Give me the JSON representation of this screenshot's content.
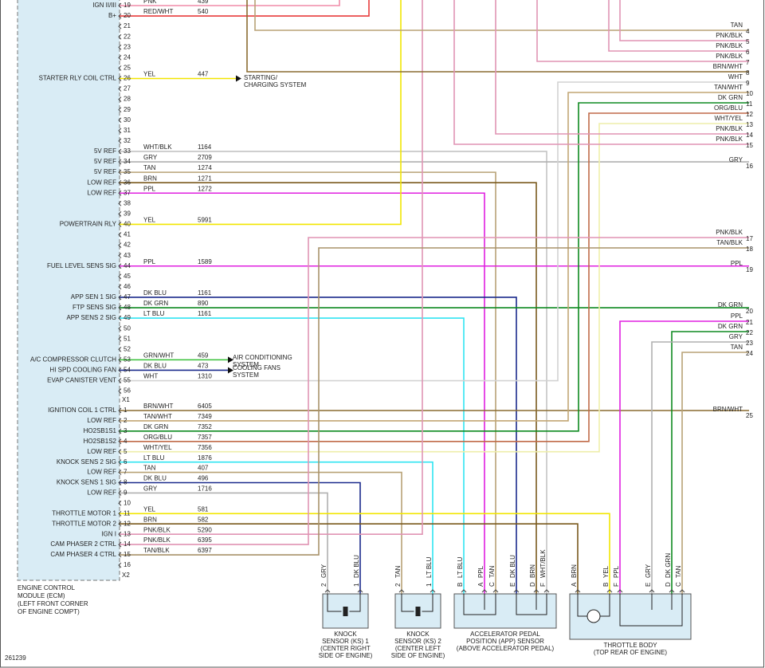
{
  "ecm": {
    "name_lines": [
      "ENGINE CONTROL",
      "MODULE (ECM)",
      "(LEFT FRONT CORNER",
      "OF ENGINE COMPT)"
    ],
    "connectors": [
      {
        "name": "X1",
        "pins": [
          {
            "pin": "19",
            "label": "IGN II/III",
            "color": "PNK",
            "circuit": "439"
          },
          {
            "pin": "20",
            "label": "B+",
            "color": "RED/WHT",
            "circuit": "540"
          },
          {
            "pin": "21"
          },
          {
            "pin": "22"
          },
          {
            "pin": "23"
          },
          {
            "pin": "24"
          },
          {
            "pin": "25"
          },
          {
            "pin": "26",
            "label": "STARTER RLY COIL CTRL",
            "color": "YEL",
            "circuit": "447"
          },
          {
            "pin": "27"
          },
          {
            "pin": "28"
          },
          {
            "pin": "29"
          },
          {
            "pin": "30"
          },
          {
            "pin": "31"
          },
          {
            "pin": "32"
          },
          {
            "pin": "33",
            "label": "5V REF",
            "color": "WHT/BLK",
            "circuit": "1164"
          },
          {
            "pin": "34",
            "label": "5V REF",
            "color": "GRY",
            "circuit": "2709"
          },
          {
            "pin": "35",
            "label": "5V REF",
            "color": "TAN",
            "circuit": "1274"
          },
          {
            "pin": "36",
            "label": "LOW REF",
            "color": "BRN",
            "circuit": "1271"
          },
          {
            "pin": "37",
            "label": "LOW REF",
            "color": "PPL",
            "circuit": "1272"
          },
          {
            "pin": "38"
          },
          {
            "pin": "39"
          },
          {
            "pin": "40",
            "label": "POWERTRAIN RLY",
            "color": "YEL",
            "circuit": "5991"
          },
          {
            "pin": "41"
          },
          {
            "pin": "42"
          },
          {
            "pin": "43"
          },
          {
            "pin": "44",
            "label": "FUEL LEVEL SENS SIG",
            "color": "PPL",
            "circuit": "1589"
          },
          {
            "pin": "45"
          },
          {
            "pin": "46"
          },
          {
            "pin": "47",
            "label": "APP SEN 1 SIG",
            "color": "DK BLU",
            "circuit": "1161"
          },
          {
            "pin": "48",
            "label": "FTP SENS SIG",
            "color": "DK GRN",
            "circuit": "890"
          },
          {
            "pin": "49",
            "label": "APP SENS 2 SIG",
            "color": "LT BLU",
            "circuit": "1161"
          },
          {
            "pin": "50"
          },
          {
            "pin": "51"
          },
          {
            "pin": "52"
          },
          {
            "pin": "53",
            "label": "A/C COMPRESSOR CLUTCH",
            "color": "GRN/WHT",
            "circuit": "459"
          },
          {
            "pin": "54",
            "label": "HI SPD COOLING FAN",
            "color": "DK BLU",
            "circuit": "473"
          },
          {
            "pin": "55",
            "label": "EVAP CANISTER VENT",
            "color": "WHT",
            "circuit": "1310"
          },
          {
            "pin": "56"
          }
        ]
      },
      {
        "name": "X2",
        "pins": [
          {
            "pin": "1",
            "label": "IGNITION COIL 1 CTRL",
            "color": "BRN/WHT",
            "circuit": "6405"
          },
          {
            "pin": "2",
            "label": "LOW REF",
            "color": "TAN/WHT",
            "circuit": "7349"
          },
          {
            "pin": "3",
            "label": "HO2SB1S1",
            "color": "DK GRN",
            "circuit": "7352"
          },
          {
            "pin": "4",
            "label": "HO2SB1S2",
            "color": "ORG/BLU",
            "circuit": "7357"
          },
          {
            "pin": "5",
            "label": "LOW REF",
            "color": "WHT/YEL",
            "circuit": "7356"
          },
          {
            "pin": "6",
            "label": "KNOCK SENS 2 SIG",
            "color": "LT BLU",
            "circuit": "1876"
          },
          {
            "pin": "7",
            "label": "LOW REF",
            "color": "TAN",
            "circuit": "407"
          },
          {
            "pin": "8",
            "label": "KNOCK SENS 1 SIG",
            "color": "DK BLU",
            "circuit": "496"
          },
          {
            "pin": "9",
            "label": "LOW REF",
            "color": "GRY",
            "circuit": "1716"
          },
          {
            "pin": "10"
          },
          {
            "pin": "11",
            "label": "THROTTLE MOTOR 1",
            "color": "YEL",
            "circuit": "581"
          },
          {
            "pin": "12",
            "label": "THROTTLE MOTOR 2",
            "color": "BRN",
            "circuit": "582"
          },
          {
            "pin": "13",
            "label": "IGN I",
            "color": "PNK/BLK",
            "circuit": "5290"
          },
          {
            "pin": "14",
            "label": "CAM PHASER 2 CTRL",
            "color": "PNK/BLK",
            "circuit": "6395"
          },
          {
            "pin": "15",
            "label": "CAM PHASER 4 CTRL",
            "color": "TAN/BLK",
            "circuit": "6397"
          },
          {
            "pin": "16"
          }
        ]
      }
    ]
  },
  "destinations": [
    {
      "lines": [
        "STARTING/",
        "CHARGING SYSTEM"
      ]
    },
    {
      "lines": [
        "AIR CONDITIONING",
        "SYSTEM"
      ]
    },
    {
      "lines": [
        "COOLING FANS",
        "SYSTEM"
      ]
    }
  ],
  "right_connector": [
    {
      "pin": "4",
      "color": "TAN"
    },
    {
      "pin": "5",
      "color": "PNK/BLK"
    },
    {
      "pin": "6",
      "color": "PNK/BLK"
    },
    {
      "pin": "7",
      "color": "PNK/BLK"
    },
    {
      "pin": "8",
      "color": "BRN/WHT"
    },
    {
      "pin": "9",
      "color": "WHT"
    },
    {
      "pin": "10",
      "color": "TAN/WHT"
    },
    {
      "pin": "11",
      "color": "DK GRN"
    },
    {
      "pin": "12",
      "color": "ORG/BLU"
    },
    {
      "pin": "13",
      "color": "WHT/YEL"
    },
    {
      "pin": "14",
      "color": "PNK/BLK"
    },
    {
      "pin": "15",
      "color": "PNK/BLK"
    },
    {
      "pin": "16",
      "color": "GRY"
    },
    {
      "pin": "17",
      "color": "PNK/BLK"
    },
    {
      "pin": "18",
      "color": "TAN/BLK"
    },
    {
      "pin": "19",
      "color": "PPL"
    },
    {
      "pin": "20",
      "color": "DK GRN"
    },
    {
      "pin": "21",
      "color": "PPL"
    },
    {
      "pin": "22",
      "color": "DK GRN"
    },
    {
      "pin": "23",
      "color": "GRY"
    },
    {
      "pin": "24",
      "color": "TAN"
    },
    {
      "pin": "25",
      "color": "BRN/WHT"
    }
  ],
  "sensors": [
    {
      "name_lines": [
        "KNOCK",
        "SENSOR (KS) 1",
        "(CENTER RIGHT",
        "SIDE OF ENGINE)"
      ],
      "pins": [
        {
          "pin": "2",
          "color": "GRY"
        },
        {
          "pin": "1",
          "color": "DK BLU"
        }
      ]
    },
    {
      "name_lines": [
        "KNOCK",
        "SENSOR (KS) 2",
        "(CENTER LEFT",
        "SIDE OF ENGINE)"
      ],
      "pins": [
        {
          "pin": "2",
          "color": "TAN"
        },
        {
          "pin": "1",
          "color": "LT BLU"
        }
      ]
    },
    {
      "name_lines": [
        "ACCELERATOR PEDAL",
        "POSITION (APP) SENSOR",
        "(ABOVE ACCELERATOR PEDAL)"
      ],
      "pins": [
        {
          "pin": "B",
          "color": "LT BLU"
        },
        {
          "pin": "A",
          "color": "PPL"
        },
        {
          "pin": "C",
          "color": "TAN"
        },
        {
          "pin": "E",
          "color": "DK BLU"
        },
        {
          "pin": "D",
          "color": "BRN"
        },
        {
          "pin": "F",
          "color": "WHT/BLK"
        }
      ]
    },
    {
      "name_lines": [
        "THROTTLE BODY",
        "(TOP REAR OF ENGINE)"
      ],
      "pins": [
        {
          "pin": "A",
          "color": "BRN"
        },
        {
          "pin": "B",
          "color": "YEL"
        },
        {
          "pin": "F",
          "color": "PPL"
        },
        {
          "pin": "E",
          "color": "GRY"
        },
        {
          "pin": "D",
          "color": "DK GRN"
        },
        {
          "pin": "C",
          "color": "TAN"
        }
      ]
    }
  ],
  "footer": {
    "id": "261239"
  }
}
